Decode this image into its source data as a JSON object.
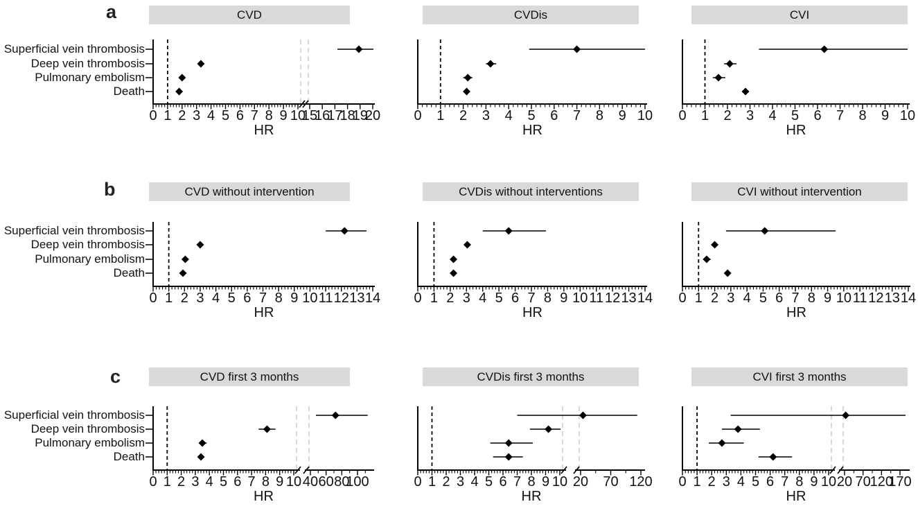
{
  "figure": {
    "panel_letters": [
      "a",
      "b",
      "c"
    ],
    "colors": {
      "title_bar_bg": "#d9d9d9",
      "marker": "#000000",
      "axis": "#000000",
      "break_line": "#cbcbcb"
    }
  },
  "chart_data": {
    "type": "forest-plot-grid",
    "description": "3x3 grid of forest plots of hazard ratios (HR) with 95% CI; dashed reference line at HR=1; some panels have a broken x-axis",
    "outcomes": [
      "Superficial vein thrombosis",
      "Deep vein thrombosis",
      "Pulmonary embolism",
      "Death"
    ],
    "rows": [
      {
        "letter": "a",
        "panels": [
          {
            "title": "CVD",
            "xlabel": "HR",
            "x_axis": {
              "ref_line": 1,
              "segments": [
                {
                  "min": 0,
                  "max": 10,
                  "ticks": [
                    0,
                    1,
                    2,
                    3,
                    4,
                    5,
                    6,
                    7,
                    8,
                    9,
                    10
                  ],
                  "minor_step": 0.2
                },
                {
                  "min": 15,
                  "max": 20,
                  "ticks": [
                    15,
                    16,
                    17,
                    18,
                    19,
                    20
                  ],
                  "minor_ticks": []
                }
              ]
            },
            "estimates": [
              {
                "hr": 18.9,
                "ci_low": 17.2,
                "ci_high": 20.2
              },
              {
                "hr": 3.3,
                "ci_low": 3.15,
                "ci_high": 3.45
              },
              {
                "hr": 2.0,
                "ci_low": 1.9,
                "ci_high": 2.1
              },
              {
                "hr": 1.8,
                "ci_low": 1.7,
                "ci_high": 1.9
              }
            ]
          },
          {
            "title": "CVDis",
            "xlabel": "HR",
            "x_axis": {
              "ref_line": 1,
              "segments": [
                {
                  "min": 0,
                  "max": 10,
                  "ticks": [
                    0,
                    1,
                    2,
                    3,
                    4,
                    5,
                    6,
                    7,
                    8,
                    9,
                    10
                  ],
                  "minor_step": 0.2
                }
              ]
            },
            "estimates": [
              {
                "hr": 7.0,
                "ci_low": 4.9,
                "ci_high": 10.0
              },
              {
                "hr": 3.2,
                "ci_low": 3.0,
                "ci_high": 3.45
              },
              {
                "hr": 2.2,
                "ci_low": 2.0,
                "ci_high": 2.4
              },
              {
                "hr": 2.15,
                "ci_low": 2.02,
                "ci_high": 2.28
              }
            ]
          },
          {
            "title": "CVI",
            "xlabel": "HR",
            "x_axis": {
              "ref_line": 1,
              "segments": [
                {
                  "min": 0,
                  "max": 10,
                  "ticks": [
                    0,
                    1,
                    2,
                    3,
                    4,
                    5,
                    6,
                    7,
                    8,
                    9,
                    10
                  ],
                  "minor_step": 0.2
                }
              ]
            },
            "estimates": [
              {
                "hr": 6.3,
                "ci_low": 3.4,
                "ci_high": 10.0
              },
              {
                "hr": 2.1,
                "ci_low": 1.85,
                "ci_high": 2.4
              },
              {
                "hr": 1.6,
                "ci_low": 1.35,
                "ci_high": 1.9
              },
              {
                "hr": 2.8,
                "ci_low": 2.65,
                "ci_high": 2.95
              }
            ]
          }
        ]
      },
      {
        "letter": "b",
        "panels": [
          {
            "title": "CVD without intervention",
            "xlabel": "HR",
            "x_axis": {
              "ref_line": 1,
              "segments": [
                {
                  "min": 0,
                  "max": 14,
                  "ticks": [
                    0,
                    1,
                    2,
                    3,
                    4,
                    5,
                    6,
                    7,
                    8,
                    9,
                    10,
                    11,
                    12,
                    13,
                    14
                  ],
                  "minor_step": 0.2
                }
              ]
            },
            "estimates": [
              {
                "hr": 12.2,
                "ci_low": 11.0,
                "ci_high": 13.6
              },
              {
                "hr": 3.0,
                "ci_low": 2.9,
                "ci_high": 3.1
              },
              {
                "hr": 2.05,
                "ci_low": 1.95,
                "ci_high": 2.15
              },
              {
                "hr": 1.9,
                "ci_low": 1.8,
                "ci_high": 2.0
              }
            ]
          },
          {
            "title": "CVDis without interventions",
            "xlabel": "HR",
            "x_axis": {
              "ref_line": 1,
              "segments": [
                {
                  "min": 0,
                  "max": 14,
                  "ticks": [
                    0,
                    1,
                    2,
                    3,
                    4,
                    5,
                    6,
                    7,
                    8,
                    9,
                    10,
                    11,
                    12,
                    13,
                    14
                  ],
                  "minor_step": 0.2
                }
              ]
            },
            "estimates": [
              {
                "hr": 5.6,
                "ci_low": 4.0,
                "ci_high": 7.9
              },
              {
                "hr": 3.05,
                "ci_low": 2.9,
                "ci_high": 3.2
              },
              {
                "hr": 2.2,
                "ci_low": 2.05,
                "ci_high": 2.35
              },
              {
                "hr": 2.2,
                "ci_low": 2.1,
                "ci_high": 2.3
              }
            ]
          },
          {
            "title": "CVI without intervention",
            "xlabel": "HR",
            "x_axis": {
              "ref_line": 1,
              "segments": [
                {
                  "min": 0,
                  "max": 14,
                  "ticks": [
                    0,
                    1,
                    2,
                    3,
                    4,
                    5,
                    6,
                    7,
                    8,
                    9,
                    10,
                    11,
                    12,
                    13,
                    14
                  ],
                  "minor_step": 0.2
                }
              ]
            },
            "estimates": [
              {
                "hr": 5.1,
                "ci_low": 2.7,
                "ci_high": 9.5
              },
              {
                "hr": 2.0,
                "ci_low": 1.8,
                "ci_high": 2.2
              },
              {
                "hr": 1.5,
                "ci_low": 1.3,
                "ci_high": 1.75
              },
              {
                "hr": 2.8,
                "ci_low": 2.65,
                "ci_high": 2.95
              }
            ]
          }
        ]
      },
      {
        "letter": "c",
        "panels": [
          {
            "title": "CVD first 3 months",
            "xlabel": "HR",
            "x_axis": {
              "ref_line": 1,
              "segments": [
                {
                  "min": 0,
                  "max": 10,
                  "ticks": [
                    0,
                    1,
                    2,
                    3,
                    4,
                    5,
                    6,
                    7,
                    8,
                    9,
                    10
                  ],
                  "minor_step": 0.2
                },
                {
                  "min": 40,
                  "max": 100,
                  "ticks": [
                    40,
                    60,
                    80,
                    100
                  ],
                  "minor_ticks": [
                    50,
                    70,
                    90,
                    110
                  ]
                }
              ]
            },
            "estimates": [
              {
                "hr": 72,
                "ci_low": 47,
                "ci_high": 113
              },
              {
                "hr": 8.1,
                "ci_low": 7.5,
                "ci_high": 8.7
              },
              {
                "hr": 3.5,
                "ci_low": 3.3,
                "ci_high": 3.8
              },
              {
                "hr": 3.4,
                "ci_low": 3.25,
                "ci_high": 3.55
              }
            ]
          },
          {
            "title": "CVDis first 3 months",
            "xlabel": "HR",
            "x_axis": {
              "ref_line": 1,
              "segments": [
                {
                  "min": 0,
                  "max": 10,
                  "ticks": [
                    0,
                    1,
                    2,
                    3,
                    4,
                    5,
                    6,
                    7,
                    8,
                    9,
                    10
                  ],
                  "minor_step": 0.2
                },
                {
                  "min": 20,
                  "max": 120,
                  "ticks": [
                    20,
                    70,
                    120
                  ],
                  "minor_ticks": [
                    45,
                    95
                  ]
                }
              ]
            },
            "estimates": [
              {
                "hr": 24,
                "ci_low": 7.0,
                "ci_high": 114
              },
              {
                "hr": 9.2,
                "ci_low": 7.9,
                "ci_high": 10.4
              },
              {
                "hr": 6.4,
                "ci_low": 5.1,
                "ci_high": 8.1
              },
              {
                "hr": 6.4,
                "ci_low": 5.3,
                "ci_high": 7.4
              }
            ]
          },
          {
            "title": "CVI first 3 months",
            "xlabel": "HR",
            "x_axis": {
              "ref_line": 1,
              "segments": [
                {
                  "min": 0,
                  "max": 10,
                  "ticks": [
                    0,
                    1,
                    2,
                    3,
                    4,
                    5,
                    6,
                    7,
                    8,
                    9,
                    10
                  ],
                  "minor_step": 0.2
                },
                {
                  "min": 20,
                  "max": 170,
                  "ticks": [
                    20,
                    70,
                    120,
                    170
                  ],
                  "minor_ticks": [
                    45,
                    95,
                    145
                  ]
                }
              ]
            },
            "estimates": [
              {
                "hr": 23,
                "ci_low": 3.3,
                "ci_high": 185
              },
              {
                "hr": 3.8,
                "ci_low": 2.7,
                "ci_high": 5.3
              },
              {
                "hr": 2.7,
                "ci_low": 1.8,
                "ci_high": 4.2
              },
              {
                "hr": 6.2,
                "ci_low": 5.2,
                "ci_high": 7.5
              }
            ]
          }
        ]
      }
    ]
  }
}
